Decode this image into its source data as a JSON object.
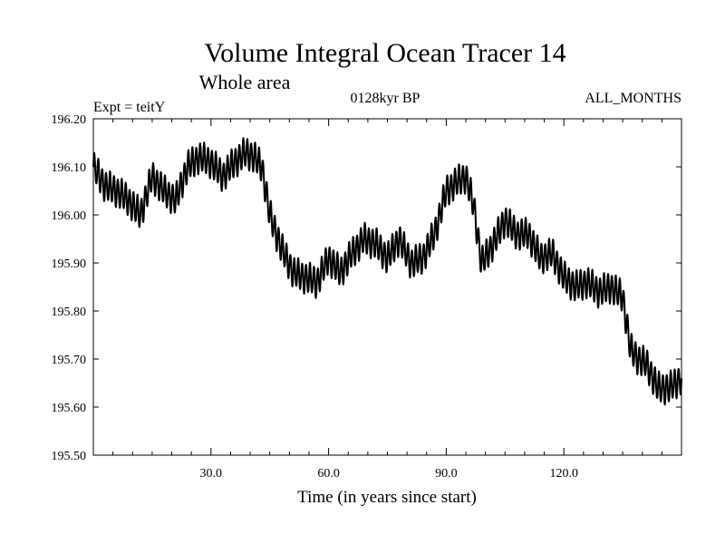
{
  "chart_data": {
    "type": "line",
    "title": "Volume Integral Ocean Tracer 14",
    "subtitle": "Whole area",
    "experiment_label": "Expt = teitY",
    "period_label": "0128kyr BP",
    "months_label": "ALL_MONTHS",
    "xlabel": "Time (in years since start)",
    "ylabel": "",
    "xlim": [
      0,
      150
    ],
    "ylim": [
      195.5,
      196.2
    ],
    "x_ticks": [
      30,
      60,
      90,
      120
    ],
    "x_tick_labels": [
      "30.0",
      "60.0",
      "90.0",
      "120.0"
    ],
    "y_ticks": [
      195.5,
      195.6,
      195.7,
      195.8,
      195.9,
      196.0,
      196.1,
      196.2
    ],
    "y_tick_labels": [
      "195.50",
      "195.60",
      "195.70",
      "195.80",
      "195.90",
      "196.00",
      "196.10",
      "196.20"
    ],
    "seasonal_amplitude": 0.035,
    "series": [
      {
        "name": "Volume Integral Ocean Tracer 14",
        "color": "#000000",
        "x": [
          0,
          3,
          6,
          9,
          12,
          15,
          18,
          21,
          24,
          27,
          30,
          33,
          36,
          39,
          41,
          43,
          45,
          48,
          51,
          54,
          57,
          60,
          63,
          66,
          69,
          72,
          75,
          78,
          81,
          84,
          87,
          90,
          93,
          95,
          97,
          99,
          102,
          105,
          108,
          111,
          114,
          117,
          120,
          123,
          126,
          129,
          132,
          135,
          137,
          139,
          141,
          144,
          147,
          150
        ],
        "y": [
          196.1,
          196.06,
          196.05,
          196.03,
          196.0,
          196.08,
          196.05,
          196.03,
          196.1,
          196.12,
          196.11,
          196.08,
          196.11,
          196.13,
          196.12,
          196.1,
          196.0,
          195.93,
          195.88,
          195.87,
          195.86,
          195.91,
          195.88,
          195.92,
          195.95,
          195.94,
          195.91,
          195.95,
          195.9,
          195.91,
          195.96,
          196.05,
          196.07,
          196.08,
          196.02,
          195.9,
          195.94,
          195.99,
          195.96,
          195.96,
          195.91,
          195.92,
          195.87,
          195.85,
          195.86,
          195.84,
          195.85,
          195.83,
          195.72,
          195.7,
          195.69,
          195.64,
          195.64,
          195.66
        ]
      }
    ]
  }
}
